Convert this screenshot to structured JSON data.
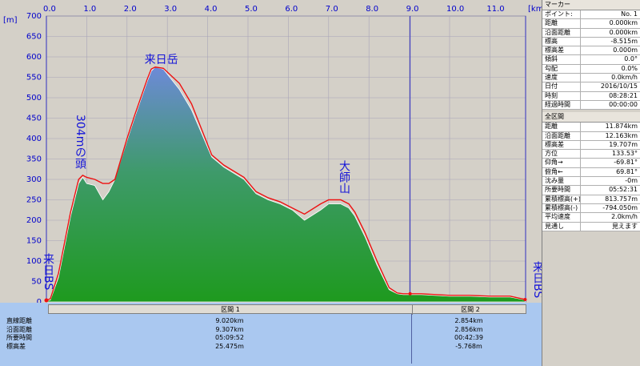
{
  "chart_data": {
    "type": "area",
    "x_unit": "[km]",
    "y_unit": "[m]",
    "xlim": [
      0,
      11.874
    ],
    "ylim": [
      0,
      700
    ],
    "x_ticks": [
      "0.0",
      "1.0",
      "2.0",
      "3.0",
      "4.0",
      "5.0",
      "6.0",
      "7.0",
      "8.0",
      "9.0",
      "10.0",
      "11.0"
    ],
    "y_ticks": [
      "0",
      "50",
      "100",
      "150",
      "200",
      "250",
      "300",
      "350",
      "400",
      "450",
      "500",
      "550",
      "600",
      "650",
      "700"
    ],
    "grid": true,
    "elevation_profile": {
      "x": [
        0,
        0.1,
        0.3,
        0.6,
        0.8,
        0.9,
        1.0,
        1.2,
        1.4,
        1.55,
        1.7,
        2.0,
        2.2,
        2.5,
        2.6,
        2.7,
        2.9,
        3.3,
        3.6,
        4.1,
        4.4,
        4.9,
        5.2,
        5.5,
        5.8,
        6.1,
        6.4,
        6.8,
        7.0,
        7.3,
        7.5,
        7.65,
        7.9,
        8.2,
        8.5,
        8.7,
        8.85,
        9.0,
        9.3,
        10.0,
        10.5,
        11.0,
        11.5,
        11.874
      ],
      "y": [
        2,
        5,
        60,
        210,
        290,
        305,
        290,
        285,
        250,
        270,
        300,
        395,
        455,
        540,
        565,
        575,
        570,
        520,
        470,
        355,
        330,
        300,
        265,
        250,
        240,
        225,
        200,
        225,
        240,
        240,
        230,
        210,
        160,
        90,
        30,
        20,
        18,
        18,
        18,
        14,
        14,
        12,
        12,
        5
      ]
    },
    "track_profile": {
      "x": [
        0,
        0.1,
        0.3,
        0.6,
        0.8,
        0.9,
        1.0,
        1.2,
        1.4,
        1.55,
        1.7,
        2.0,
        2.2,
        2.5,
        2.6,
        2.7,
        2.9,
        3.3,
        3.6,
        4.1,
        4.4,
        4.9,
        5.2,
        5.5,
        5.8,
        6.1,
        6.4,
        6.8,
        7.0,
        7.3,
        7.5,
        7.65,
        7.9,
        8.2,
        8.5,
        8.7,
        8.85,
        9.0,
        9.3,
        10.0,
        10.5,
        11.0,
        11.5,
        11.874
      ],
      "y": [
        3,
        8,
        70,
        220,
        300,
        310,
        305,
        300,
        290,
        290,
        300,
        400,
        460,
        545,
        570,
        575,
        572,
        535,
        485,
        360,
        335,
        305,
        270,
        255,
        245,
        230,
        215,
        240,
        250,
        250,
        240,
        220,
        170,
        100,
        35,
        22,
        20,
        20,
        20,
        16,
        16,
        14,
        14,
        6
      ]
    },
    "annotations": [
      {
        "text": "来日岳",
        "x": 2.87,
        "y": 600
      },
      {
        "text": "304mの頭",
        "x": 0.85,
        "y": 310
      },
      {
        "text": "大師山",
        "x": 7.35,
        "y": 250
      },
      {
        "text": "来日BS",
        "x": 0.05,
        "y": 0
      },
      {
        "text": "来日BS",
        "x": 11.78,
        "y": 0
      }
    ],
    "section_divider_km": 9.02
  },
  "colors": {
    "bg": "#d4d0c8",
    "grid": "#b0aca4",
    "track": "#ee1010",
    "fill_top": "#6d8ad8",
    "fill_bottom": "#1e9a1e",
    "axis_label": "#0000cc",
    "table_bg": "#aac8f0"
  },
  "panel": {
    "marker_title": "マーカー",
    "marker_rows": [
      {
        "k": "ポイント:",
        "v": "No. 1"
      },
      {
        "k": "距離",
        "v": "0.000km"
      },
      {
        "k": "沿面距離",
        "v": "0.000km"
      },
      {
        "k": "標高",
        "v": "-8.515m"
      },
      {
        "k": "標高差",
        "v": "0.000m"
      },
      {
        "k": "傾斜",
        "v": "0.0°"
      },
      {
        "k": "勾配",
        "v": "0.0%"
      },
      {
        "k": "速度",
        "v": "0.0km/h"
      },
      {
        "k": "日付",
        "v": "2016/10/15"
      },
      {
        "k": "時刻",
        "v": "08:28:21"
      },
      {
        "k": "経過時間",
        "v": "00:00:00"
      }
    ],
    "total_title": "全区間",
    "total_rows": [
      {
        "k": "距離",
        "v": "11.874km"
      },
      {
        "k": "沿面距離",
        "v": "12.163km"
      },
      {
        "k": "標高差",
        "v": "19.707m"
      },
      {
        "k": "方位",
        "v": "133.53°"
      },
      {
        "k": "仰角→",
        "v": "-69.81°"
      },
      {
        "k": "俯角←",
        "v": "69.81°"
      },
      {
        "k": "沈み量",
        "v": "-0m"
      },
      {
        "k": "所要時間",
        "v": "05:52:31"
      },
      {
        "k": "累積標高(+)",
        "v": "813.757m"
      },
      {
        "k": "累積標高(-)",
        "v": "-794.050m"
      },
      {
        "k": "平均速度",
        "v": "2.0km/h"
      },
      {
        "k": "見通し",
        "v": "見えます"
      }
    ]
  },
  "table": {
    "headers": [
      "区間 1",
      "区間 2"
    ],
    "rows": [
      {
        "label": "直線距離",
        "s1": "9.020km",
        "s2": "2.854km"
      },
      {
        "label": "沿面距離",
        "s1": "9.307km",
        "s2": "2.856km"
      },
      {
        "label": "所要時間",
        "s1": "05:09:52",
        "s2": "00:42:39"
      },
      {
        "label": "標高差",
        "s1": "25.475m",
        "s2": "-5.768m"
      }
    ]
  }
}
